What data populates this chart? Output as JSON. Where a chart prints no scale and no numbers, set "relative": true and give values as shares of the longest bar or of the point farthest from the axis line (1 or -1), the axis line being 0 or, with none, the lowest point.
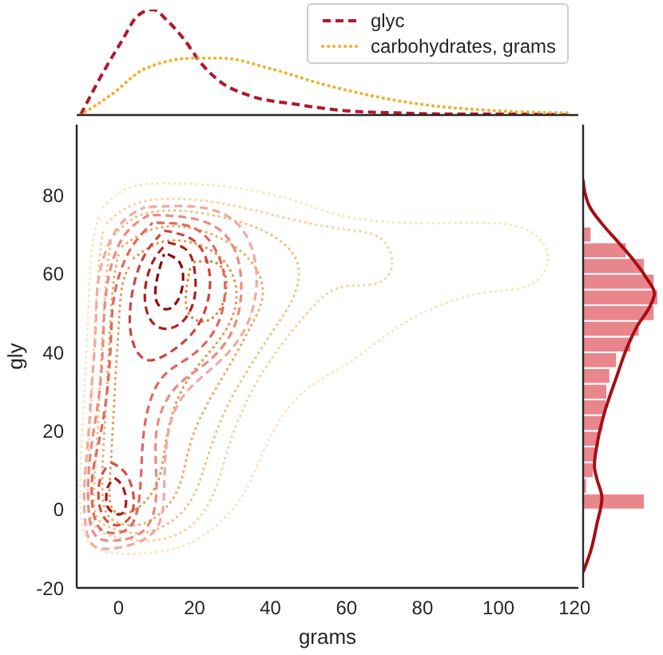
{
  "chart_data": [
    {
      "type": "line",
      "relative": true,
      "xlim": [
        -11,
        121
      ],
      "xticks": [
        0,
        20,
        40,
        60,
        80,
        100,
        120
      ],
      "tick_labels": false,
      "legend": "top right",
      "series": [
        {
          "name": "glyc",
          "color": "#b2182b",
          "line_style": "dashed",
          "x": [
            -10,
            -3,
            1,
            5,
            9,
            13,
            17,
            22,
            27,
            34,
            47,
            60,
            73,
            86,
            100,
            119
          ],
          "values": [
            0,
            0.47,
            0.71,
            0.94,
            1,
            0.89,
            0.73,
            0.48,
            0.31,
            0.19,
            0.1,
            0.04,
            0.02,
            0.01,
            0.01,
            0
          ]
        },
        {
          "name": "carbohydrates, grams",
          "color": "#f0b030",
          "line_style": "dotted",
          "x": [
            -10,
            -2,
            7,
            20,
            27,
            40,
            53,
            67,
            80,
            100,
            119
          ],
          "values": [
            0,
            0.19,
            0.44,
            0.54,
            0.54,
            0.44,
            0.3,
            0.18,
            0.1,
            0.04,
            0.02
          ]
        }
      ]
    },
    {
      "type": "line",
      "xlabel": "grams",
      "ylabel": "gly",
      "xlim": [
        -11,
        121
      ],
      "xticks": [
        0,
        20,
        40,
        60,
        80,
        100,
        120
      ],
      "ylim": [
        -20,
        98
      ],
      "yticks": [
        -20,
        0,
        20,
        40,
        60,
        80
      ],
      "series": [
        {
          "color": "#f9e4c0",
          "line_style": "dotted",
          "x": [
            -4,
            3,
            15,
            30,
            45,
            58,
            75,
            95,
            108,
            113,
            108,
            95,
            80,
            70,
            60,
            50,
            42,
            36,
            30,
            20,
            9,
            -2,
            -9,
            -10,
            -9,
            -8,
            -7,
            -5
          ],
          "values": [
            77,
            82,
            83,
            82,
            79,
            75,
            73,
            73,
            71,
            64,
            57,
            55,
            50,
            44,
            37,
            31,
            22,
            10,
            0,
            -8,
            -11,
            -11,
            -6,
            10,
            30,
            50,
            66,
            75
          ]
        },
        {
          "color": "#f6d3a0",
          "line_style": "dotted",
          "x": [
            -3,
            5,
            18,
            32,
            45,
            55,
            62,
            69,
            72,
            69,
            62,
            55,
            47,
            40,
            34,
            29,
            25,
            18,
            8,
            -1,
            -7,
            -8,
            -7,
            -6,
            -5,
            -4
          ],
          "values": [
            73,
            78,
            79,
            77,
            74,
            72,
            71,
            69,
            63,
            58,
            57,
            55,
            47,
            38,
            28,
            16,
            4,
            -5,
            -8,
            -7,
            -3,
            10,
            30,
            50,
            64,
            71
          ]
        },
        {
          "color": "#f1c080",
          "line_style": "dotted",
          "x": [
            -1,
            6,
            17,
            29,
            40,
            47,
            46,
            41,
            35,
            29,
            24,
            20,
            14,
            6,
            -1,
            -6,
            -6,
            -5,
            -4,
            -3,
            -2
          ],
          "values": [
            70,
            75,
            76,
            74,
            70,
            63,
            54,
            46,
            37,
            27,
            15,
            4,
            -3,
            -6,
            -5,
            -1,
            12,
            30,
            48,
            61,
            68
          ]
        },
        {
          "color": "#ebab64",
          "line_style": "dotted",
          "x": [
            1,
            8,
            17,
            27,
            35,
            38,
            35,
            30,
            24,
            19,
            16,
            11,
            5,
            -1,
            -4,
            -4,
            -3,
            -2,
            -1,
            0
          ],
          "values": [
            67,
            71,
            72,
            69,
            63,
            55,
            47,
            38,
            28,
            17,
            6,
            -1,
            -4,
            -3,
            2,
            15,
            32,
            50,
            60,
            65
          ]
        },
        {
          "color": "#e3974c",
          "line_style": "dotted",
          "x": [
            4,
            11,
            19,
            27,
            31,
            29,
            23,
            17,
            13,
            11,
            7,
            2,
            -2,
            -2,
            -1,
            0,
            1,
            3
          ],
          "values": [
            64,
            68,
            68,
            64,
            56,
            47,
            39,
            31,
            20,
            9,
            2,
            -1,
            1,
            12,
            30,
            46,
            57,
            62
          ]
        },
        {
          "color": "#d8823a",
          "line_style": "dotted",
          "x": [
            20,
            25,
            28,
            28,
            25,
            21,
            18,
            18,
            19
          ],
          "values": [
            63,
            63,
            60,
            54,
            49,
            48,
            51,
            57,
            62
          ]
        },
        {
          "color": "#f2a8a0",
          "line_style": "dashed",
          "x": [
            8,
            21,
            31,
            36,
            35,
            28,
            18,
            13,
            12,
            9,
            -2,
            -8,
            -9,
            -8,
            -7,
            -6,
            -5,
            0,
            7
          ],
          "values": [
            77,
            77,
            73,
            63,
            50,
            39,
            30,
            19,
            5,
            -6,
            -10,
            -7,
            5,
            18,
            32,
            46,
            60,
            72,
            77
          ]
        },
        {
          "color": "#ec8a80",
          "line_style": "dashed",
          "x": [
            9,
            20,
            28,
            32,
            31,
            24,
            15,
            10,
            10,
            7,
            -2,
            -7,
            -8,
            -7,
            -5,
            -4,
            -3,
            1,
            8
          ],
          "values": [
            75,
            74,
            70,
            61,
            48,
            38,
            31,
            20,
            6,
            -5,
            -8,
            -5,
            5,
            17,
            30,
            44,
            57,
            69,
            75
          ]
        },
        {
          "color": "#e06860",
          "line_style": "dashed",
          "x": [
            10,
            19,
            25,
            28,
            26,
            19,
            11,
            7,
            6,
            4,
            -2,
            -6,
            -7,
            -5,
            -3,
            -2,
            -1,
            3,
            9
          ],
          "values": [
            73,
            72,
            67,
            58,
            47,
            39,
            33,
            22,
            10,
            -3,
            -6,
            -3,
            7,
            18,
            30,
            43,
            55,
            66,
            73
          ]
        },
        {
          "color": "#cc4440",
          "line_style": "dashed",
          "x": [
            12,
            19,
            23,
            24,
            21,
            15,
            9,
            5,
            3,
            4,
            7,
            11
          ],
          "values": [
            71,
            69,
            64,
            56,
            47,
            41,
            38,
            40,
            47,
            57,
            65,
            70
          ]
        },
        {
          "color": "#b02020",
          "line_style": "dashed",
          "x": [
            13,
            18,
            20,
            20,
            17,
            12,
            8,
            7,
            9,
            12
          ],
          "values": [
            68,
            66,
            61,
            54,
            48,
            46,
            49,
            56,
            63,
            67
          ]
        },
        {
          "color": "#8b0a0a",
          "line_style": "dashed",
          "x": [
            13,
            16,
            17,
            16,
            13,
            10,
            10,
            11,
            12
          ],
          "values": [
            65,
            63,
            59,
            54,
            51,
            53,
            58,
            62,
            65
          ]
        },
        {
          "color": "#d85040",
          "line_style": "dashed",
          "x": [
            -2,
            2,
            4,
            3,
            0,
            -3,
            -5,
            -5,
            -3
          ],
          "values": [
            12,
            9,
            3,
            -2,
            -4,
            -3,
            1,
            7,
            11
          ]
        },
        {
          "color": "#b01818",
          "line_style": "dashed",
          "x": [
            -1,
            1,
            2,
            1,
            -1,
            -3,
            -3,
            -2
          ],
          "values": [
            8,
            6,
            2,
            -1,
            -1,
            1,
            5,
            7
          ]
        }
      ]
    },
    {
      "type": "histogram",
      "orientation": "horizontal",
      "relative": true,
      "ylim": [
        -20,
        98
      ],
      "yticks": [
        -20,
        0,
        20,
        40,
        60,
        80
      ],
      "tick_labels": false,
      "series": [
        {
          "color": "#e8868c",
          "bins": [
            0,
            4,
            8,
            12,
            16,
            20,
            24,
            28,
            32,
            36,
            40,
            44,
            48,
            52,
            56,
            60,
            64,
            68,
            72
          ],
          "values": [
            0.82,
            0.05,
            0.14,
            0.17,
            0.22,
            0.27,
            0.31,
            0.32,
            0.36,
            0.45,
            0.64,
            0.75,
            0.95,
            1,
            0.95,
            0.82,
            0.58,
            0.11
          ]
        },
        {
          "type": "line",
          "color": "#a50f15",
          "x": [
            -16,
            -10,
            -4,
            3,
            8,
            11,
            18,
            25,
            34,
            41,
            47,
            51,
            55,
            59,
            64,
            68,
            73,
            77,
            81,
            84
          ],
          "values": [
            0,
            0.11,
            0.18,
            0.25,
            0.18,
            0.15,
            0.2,
            0.29,
            0.45,
            0.58,
            0.73,
            0.87,
            0.95,
            0.84,
            0.65,
            0.47,
            0.24,
            0.09,
            0.02,
            0
          ]
        }
      ]
    }
  ]
}
